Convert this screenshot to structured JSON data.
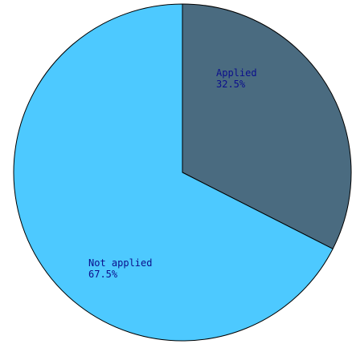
{
  "chart_data": {
    "type": "pie",
    "slices": [
      {
        "label": "Applied",
        "percent_label": "32.5%",
        "value": 32.5,
        "color": "#4a6b80"
      },
      {
        "label": "Not applied",
        "percent_label": "67.5%",
        "value": 67.5,
        "color": "#4dc9ff"
      }
    ],
    "start_angle_deg": 90,
    "direction": "clockwise",
    "label_color": "#0b0f8c",
    "outline_color": "#000000"
  }
}
